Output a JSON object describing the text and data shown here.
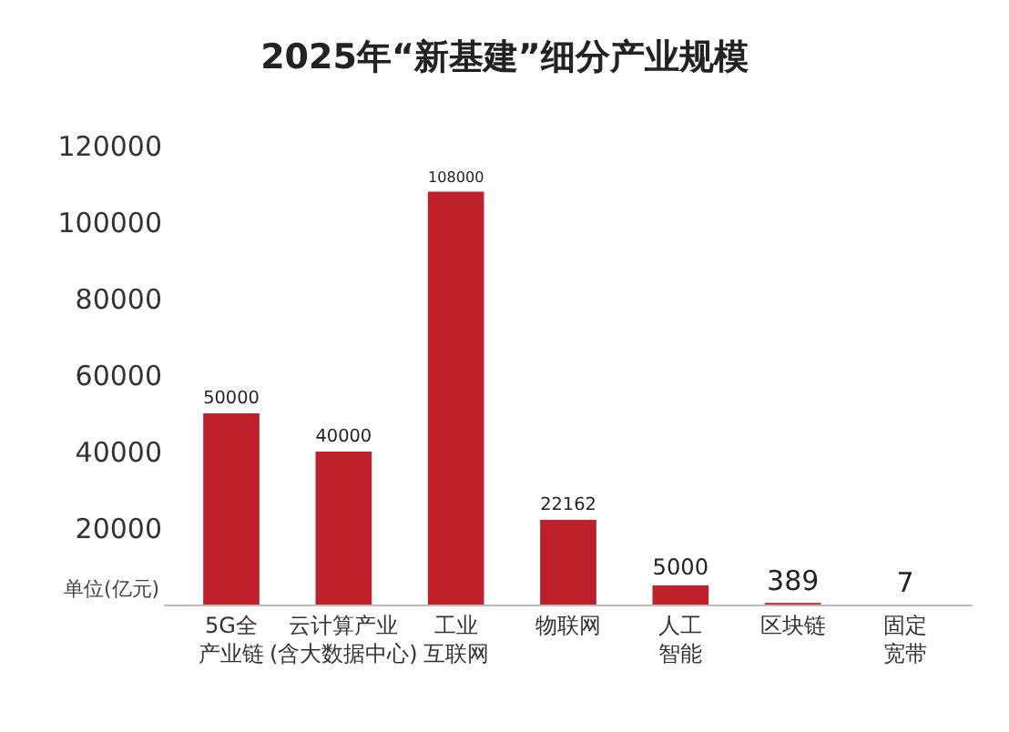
{
  "chart_data": {
    "type": "bar",
    "title": "2025年“新基建”细分产业规模",
    "ylabel": "单位(亿元)",
    "categories": [
      "5G全产业链",
      "云计算产业(含大数据中心)",
      "工业互联网",
      "物联网",
      "人工智能",
      "区块链",
      "固定宽带"
    ],
    "values": [
      50000,
      40000,
      108000,
      22162,
      5000,
      389,
      7
    ],
    "color": "#c0202a",
    "ylim": [
      0,
      120000
    ],
    "yticks": [
      20000,
      40000,
      60000,
      80000,
      100000,
      120000
    ],
    "grid": false,
    "data_labels": true
  }
}
